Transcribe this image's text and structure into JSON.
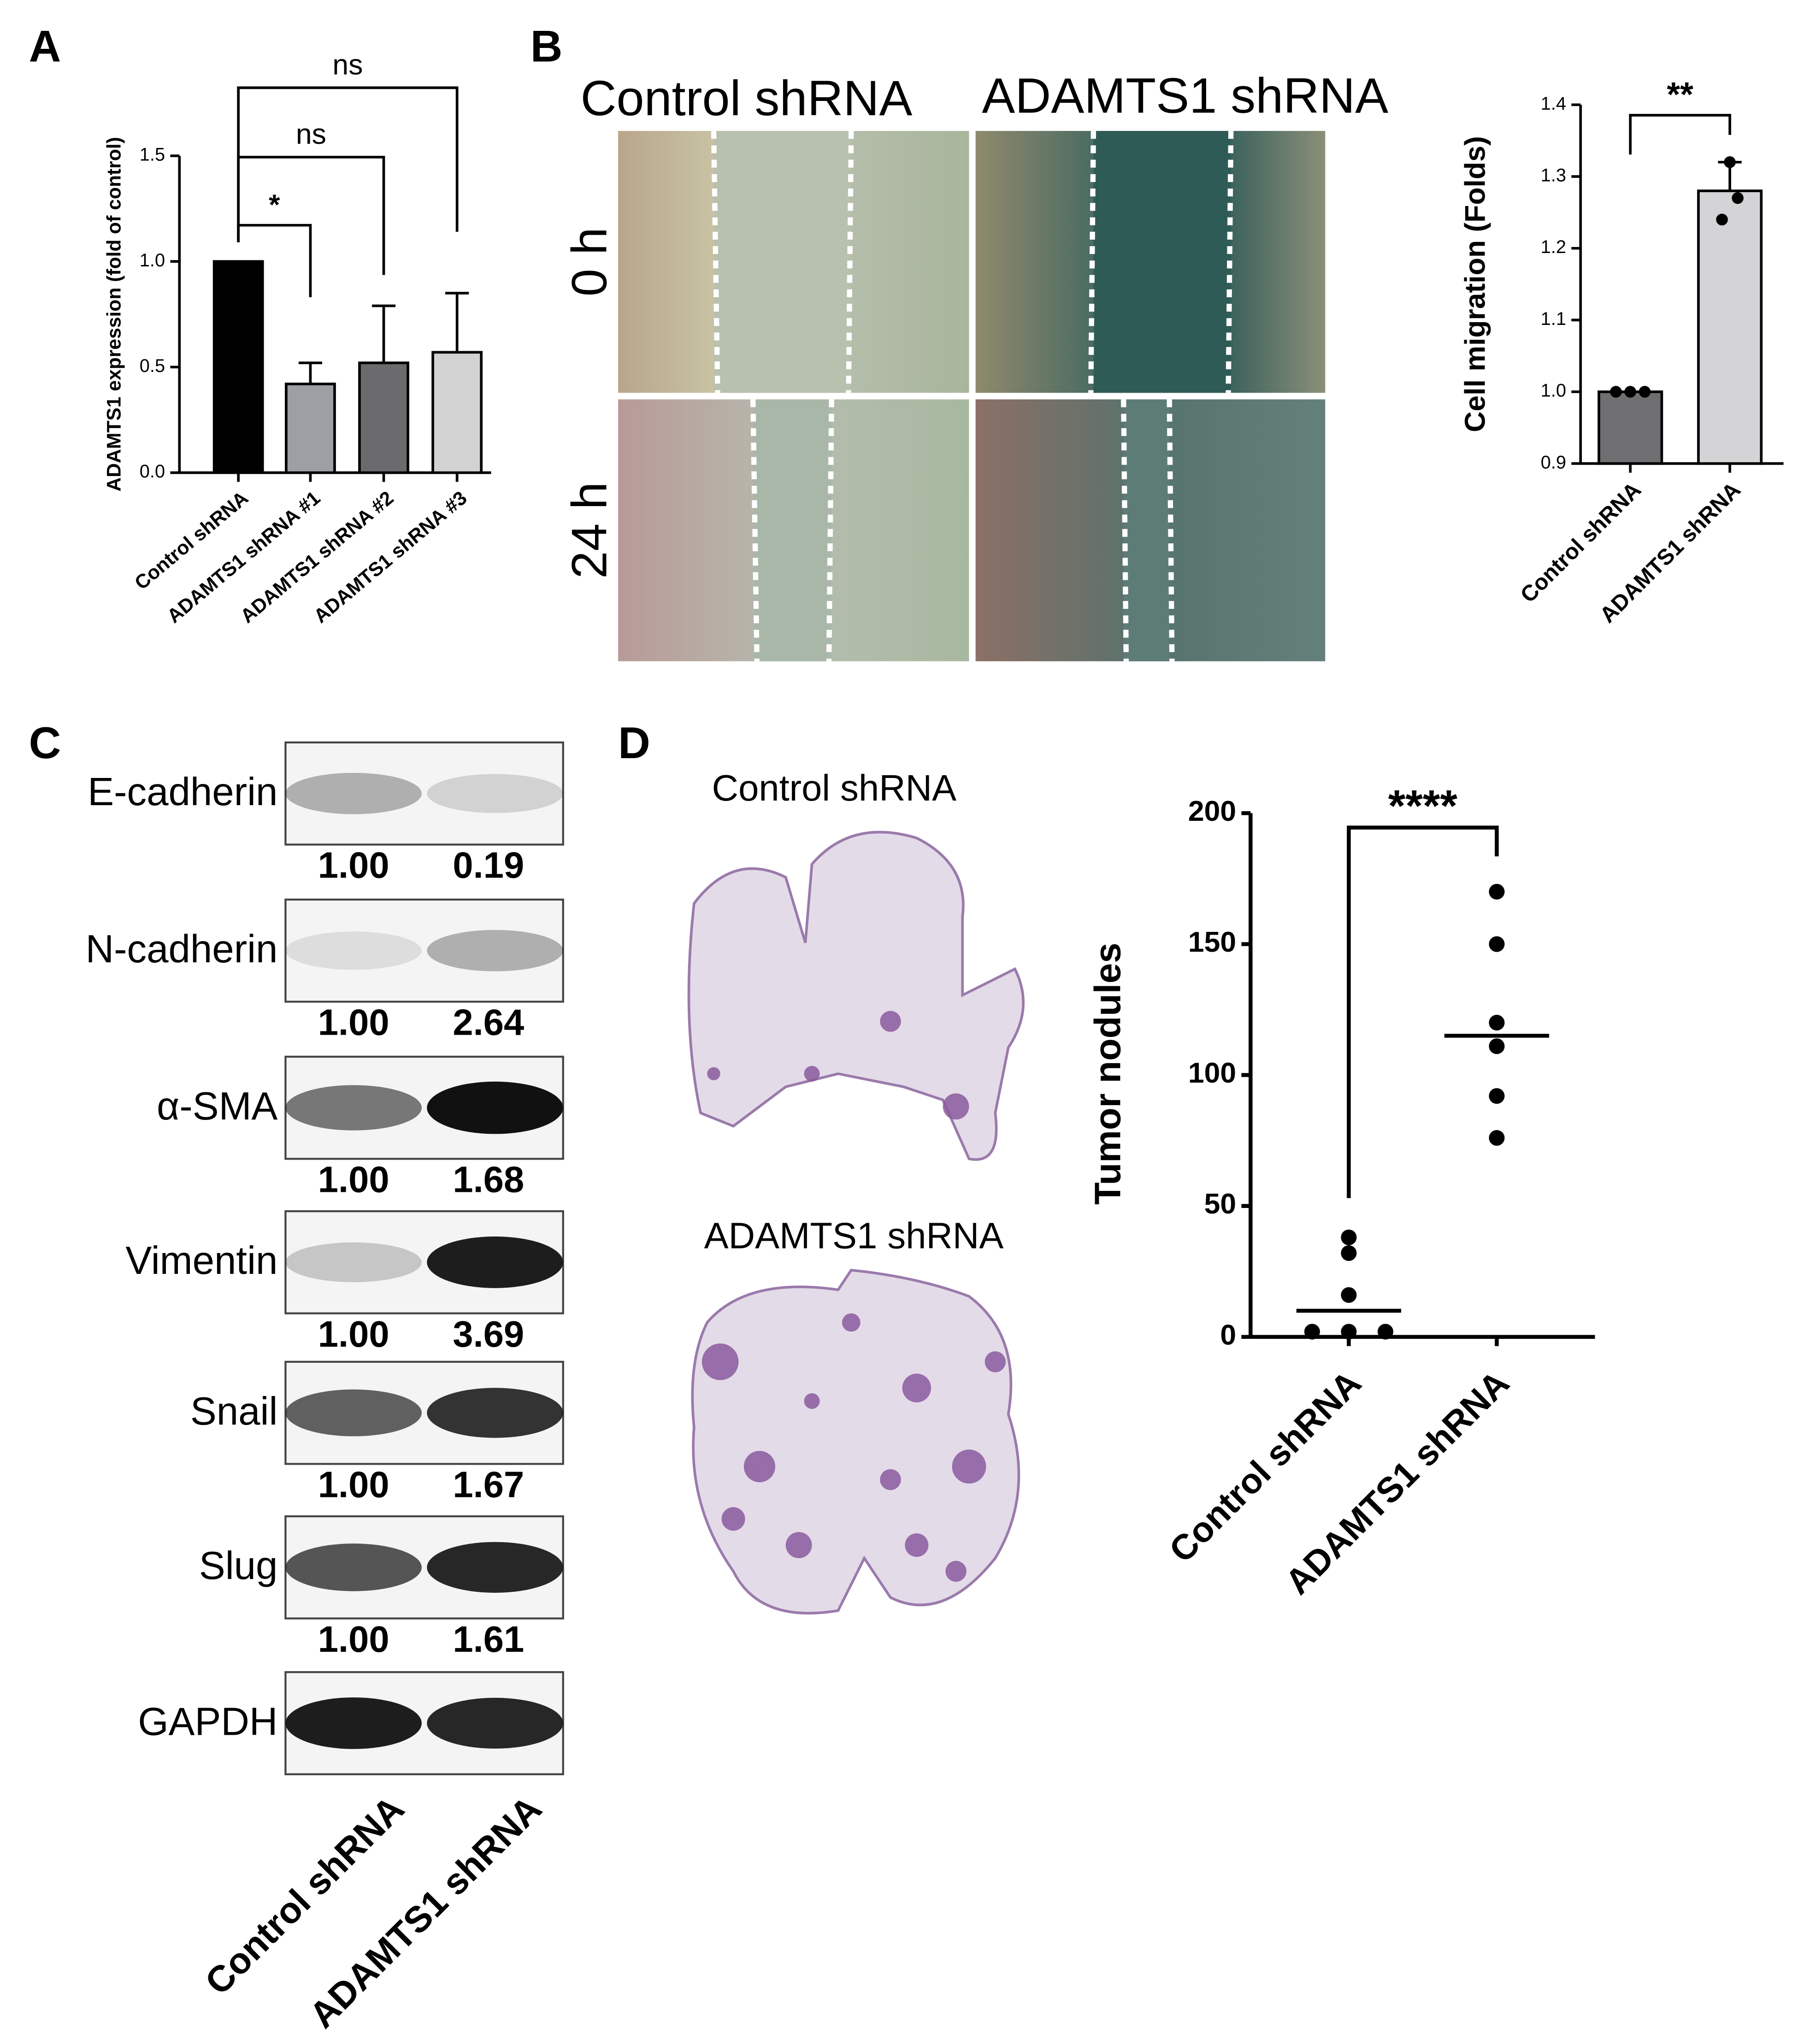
{
  "panel_labels": [
    "A",
    "B",
    "C",
    "D"
  ],
  "chart_data": [
    {
      "type": "bar",
      "ylabel": "ADAMTS1 expression (fold of control)",
      "categories": [
        "Control shRNA",
        "ADAMTS1 shRNA #1",
        "ADAMTS1 shRNA #2",
        "ADAMTS1 shRNA #3"
      ],
      "values": [
        1.0,
        0.42,
        0.52,
        0.57
      ],
      "errors": [
        0,
        0.1,
        0.27,
        0.28
      ],
      "error_direction": "up",
      "colors": [
        "#000000",
        "#9d9fa4",
        "#6b6b6d",
        "#d2d2d2"
      ],
      "ylim": [
        0,
        1.5
      ],
      "yticks": [
        {
          "value": 0,
          "label": "0.0"
        },
        0.5,
        {
          "value": 1,
          "label": "1.0"
        },
        1.5
      ],
      "annotations": [
        "*",
        "ns",
        "ns"
      ]
    },
    {
      "type": "bar",
      "ylabel": "Cell migration (Folds)",
      "categories": [
        "Control shRNA",
        "ADAMTS1 shRNA"
      ],
      "values": [
        1.0,
        1.28
      ],
      "errors": [
        0,
        0.04
      ],
      "error_direction": "both",
      "points": [
        [
          1.0,
          1.0,
          1.0
        ],
        [
          1.32,
          1.27,
          1.24
        ]
      ],
      "colors": [
        "#6f6f71",
        "#d4d4d6"
      ],
      "ylim": [
        0.9,
        1.4
      ],
      "yticks": [
        0.9,
        {
          "value": 1,
          "label": "1.0"
        },
        1.1,
        1.2,
        1.3,
        1.4
      ],
      "annotations": [
        "**"
      ]
    },
    {
      "type": "scatter",
      "ylabel": "Tumor nodules",
      "categories": [
        "Control shRNA",
        "ADAMTS1 shRNA"
      ],
      "points": [
        [
          38,
          32,
          16,
          2,
          2,
          2
        ],
        [
          170,
          150,
          120,
          111,
          92,
          76
        ]
      ],
      "center_lines": [
        10,
        115
      ],
      "color": "#000000",
      "ylim": [
        0,
        200
      ],
      "yticks": [
        0,
        50,
        100,
        150,
        200
      ],
      "annotations": [
        "****"
      ]
    }
  ],
  "migration": {
    "columns": [
      "Control shRNA",
      "ADAMTS1 shRNA"
    ],
    "rows": [
      "0 h",
      "24 h"
    ]
  },
  "blot": {
    "proteins": [
      {
        "name": "E-cadherin",
        "values": [
          "1.00",
          "0.19"
        ]
      },
      {
        "name": "N-cadherin",
        "values": [
          "1.00",
          "2.64"
        ]
      },
      {
        "name": "α-SMA",
        "values": [
          "1.00",
          "1.68"
        ]
      },
      {
        "name": "Vimentin",
        "values": [
          "1.00",
          "3.69"
        ]
      },
      {
        "name": "Snail",
        "values": [
          "1.00",
          "1.67"
        ]
      },
      {
        "name": "Slug",
        "values": [
          "1.00",
          "1.61"
        ]
      },
      {
        "name": "GAPDH"
      }
    ],
    "lanes": [
      "Control shRNA",
      "ADAMTS1 shRNA"
    ]
  },
  "histology": {
    "labels": [
      "Control shRNA",
      "ADAMTS1 shRNA"
    ]
  }
}
